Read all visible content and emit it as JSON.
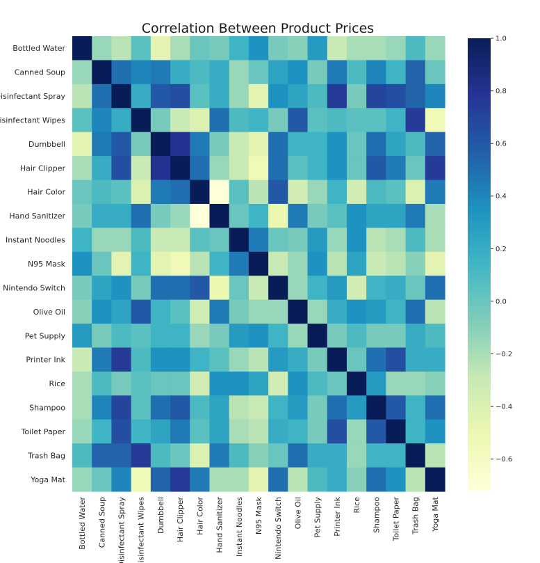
{
  "chart_data": {
    "type": "heatmap",
    "title": "Correlation Between Product Prices",
    "xlabel": "",
    "ylabel": "",
    "grid": false,
    "colormap": "YlGnBu",
    "colorbar_range": [
      -0.72,
      1.0
    ],
    "colorbar_ticks": [
      "1.0",
      "0.8",
      "0.6",
      "0.4",
      "0.2",
      "0.0",
      "−0.2",
      "−0.4",
      "−0.6"
    ],
    "colorbar_tick_values": [
      1.0,
      0.8,
      0.6,
      0.4,
      0.2,
      0.0,
      -0.2,
      -0.4,
      -0.6
    ],
    "categories": [
      "Bottled Water",
      "Canned Soup",
      "Disinfectant Spray",
      "Disinfectant Wipes",
      "Dumbbell",
      "Hair Clipper",
      "Hair Color",
      "Hand Sanitizer",
      "Instant Noodles",
      "N95 Mask",
      "Nintendo Switch",
      "Olive Oil",
      "Pet Supply",
      "Printer Ink",
      "Rice",
      "Shampoo",
      "Toilet Paper",
      "Trash Bag",
      "Yoga Mat"
    ],
    "matrix": [
      [
        1.0,
        -0.15,
        -0.25,
        0.05,
        -0.45,
        -0.2,
        0.0,
        -0.05,
        0.15,
        0.35,
        -0.05,
        -0.1,
        0.3,
        -0.3,
        -0.2,
        -0.2,
        -0.15,
        0.1,
        -0.15
      ],
      [
        -0.15,
        1.0,
        0.5,
        0.4,
        0.45,
        0.2,
        0.1,
        0.2,
        -0.15,
        0.0,
        0.25,
        0.35,
        -0.05,
        0.45,
        0.1,
        0.4,
        0.15,
        0.55,
        0.0
      ],
      [
        -0.25,
        0.5,
        1.0,
        0.2,
        0.6,
        0.65,
        0.05,
        0.2,
        -0.15,
        -0.45,
        0.35,
        0.25,
        0.1,
        0.75,
        -0.05,
        0.7,
        0.65,
        0.55,
        0.4
      ],
      [
        0.05,
        0.4,
        0.2,
        1.0,
        -0.05,
        -0.3,
        -0.4,
        0.5,
        0.1,
        0.15,
        -0.05,
        0.6,
        0.05,
        0.1,
        0.05,
        0.05,
        0.15,
        0.75,
        -0.55
      ],
      [
        -0.45,
        0.45,
        0.6,
        -0.05,
        1.0,
        0.8,
        0.45,
        -0.05,
        -0.3,
        -0.45,
        0.5,
        0.15,
        0.15,
        0.35,
        0.0,
        0.5,
        0.25,
        0.1,
        0.55
      ],
      [
        -0.2,
        0.2,
        0.65,
        -0.3,
        0.8,
        1.0,
        0.5,
        -0.15,
        -0.3,
        -0.55,
        0.5,
        0.05,
        0.15,
        0.35,
        0.0,
        0.6,
        0.45,
        0.0,
        0.75
      ],
      [
        0.0,
        0.1,
        0.05,
        -0.4,
        0.45,
        0.5,
        1.0,
        -0.72,
        0.05,
        -0.25,
        0.6,
        -0.35,
        -0.15,
        0.15,
        -0.35,
        0.1,
        0.05,
        -0.4,
        0.45
      ],
      [
        -0.05,
        0.2,
        0.2,
        0.5,
        -0.05,
        -0.15,
        -0.72,
        1.0,
        0.0,
        0.15,
        -0.5,
        0.45,
        -0.05,
        0.05,
        0.35,
        0.25,
        0.25,
        0.45,
        -0.2
      ],
      [
        0.15,
        -0.15,
        -0.15,
        0.1,
        -0.3,
        -0.3,
        0.05,
        0.0,
        1.0,
        0.45,
        0.0,
        -0.05,
        0.3,
        -0.15,
        0.35,
        -0.25,
        -0.2,
        0.1,
        -0.2
      ],
      [
        0.35,
        0.0,
        -0.45,
        0.15,
        -0.45,
        -0.55,
        -0.25,
        0.15,
        0.45,
        1.0,
        -0.3,
        -0.15,
        0.35,
        -0.25,
        0.25,
        -0.3,
        -0.25,
        -0.1,
        -0.45
      ],
      [
        -0.05,
        0.25,
        0.35,
        -0.05,
        0.5,
        0.5,
        0.6,
        -0.5,
        0.0,
        -0.3,
        1.0,
        -0.15,
        0.15,
        0.3,
        -0.35,
        0.15,
        0.2,
        0.0,
        0.5
      ],
      [
        -0.1,
        0.35,
        0.25,
        0.6,
        0.15,
        0.05,
        -0.35,
        0.45,
        -0.05,
        -0.15,
        -0.15,
        1.0,
        -0.15,
        0.2,
        0.35,
        0.3,
        0.15,
        0.5,
        -0.25
      ],
      [
        0.3,
        -0.05,
        0.1,
        0.05,
        0.15,
        0.15,
        -0.15,
        -0.05,
        0.3,
        0.35,
        0.15,
        -0.15,
        1.0,
        -0.05,
        0.1,
        -0.05,
        -0.05,
        0.2,
        0.1
      ],
      [
        -0.3,
        0.45,
        0.75,
        0.1,
        0.35,
        0.35,
        0.15,
        0.05,
        -0.15,
        -0.25,
        0.3,
        0.2,
        -0.05,
        1.0,
        0.0,
        0.5,
        0.65,
        0.2,
        0.2
      ],
      [
        -0.2,
        0.1,
        -0.05,
        0.05,
        0.0,
        0.0,
        -0.35,
        0.35,
        0.35,
        0.25,
        -0.35,
        0.35,
        0.1,
        0.0,
        1.0,
        0.3,
        -0.15,
        -0.15,
        -0.1
      ],
      [
        -0.2,
        0.4,
        0.7,
        0.05,
        0.5,
        0.6,
        0.1,
        0.25,
        -0.25,
        -0.3,
        0.15,
        0.3,
        -0.05,
        0.5,
        0.3,
        1.0,
        0.6,
        0.15,
        0.5
      ],
      [
        -0.15,
        0.15,
        0.65,
        0.15,
        0.25,
        0.45,
        0.05,
        0.25,
        -0.2,
        -0.25,
        0.2,
        0.15,
        -0.05,
        0.65,
        -0.15,
        0.6,
        1.0,
        0.15,
        0.35
      ],
      [
        0.1,
        0.55,
        0.55,
        0.75,
        0.1,
        0.0,
        -0.4,
        0.45,
        0.1,
        -0.1,
        0.0,
        0.5,
        0.2,
        0.2,
        -0.15,
        0.15,
        0.15,
        1.0,
        -0.25
      ],
      [
        -0.15,
        0.0,
        0.4,
        -0.55,
        0.55,
        0.75,
        0.45,
        -0.2,
        -0.2,
        -0.45,
        0.5,
        -0.25,
        0.1,
        0.2,
        -0.1,
        0.5,
        0.35,
        -0.25,
        1.0
      ]
    ]
  }
}
